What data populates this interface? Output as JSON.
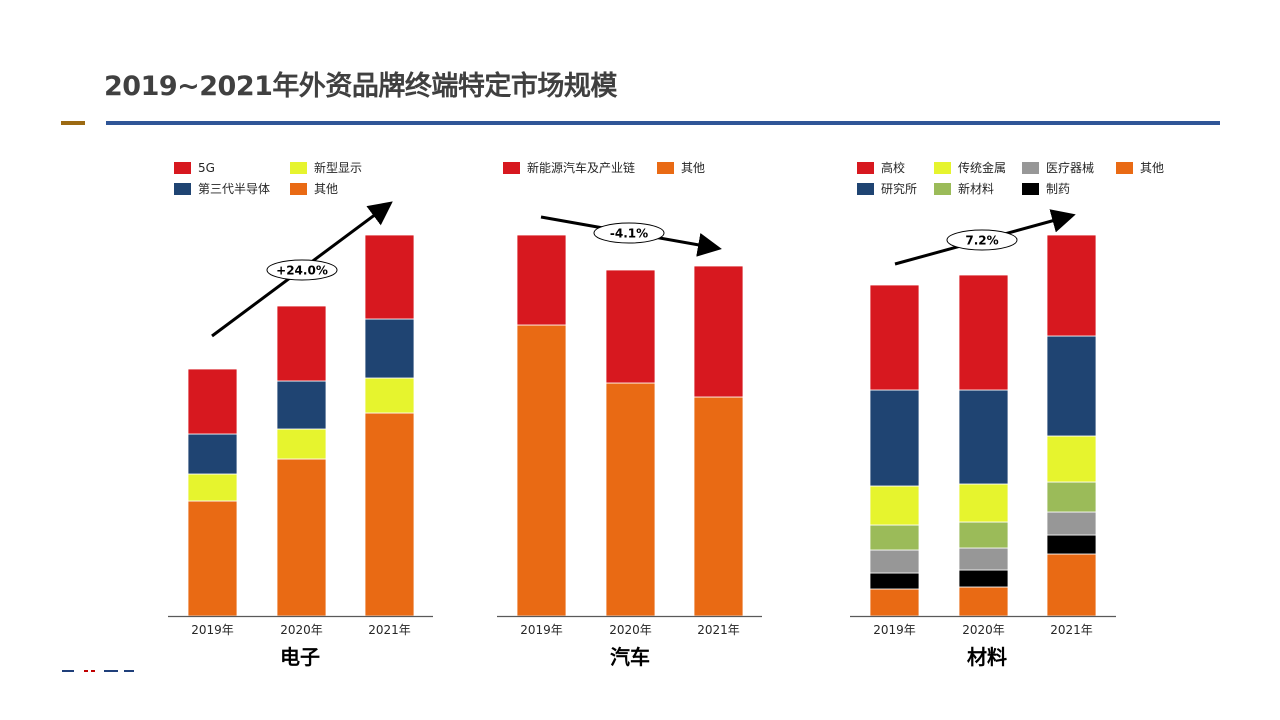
{
  "page": {
    "title": "2019~2021年外资品牌终端特定市场规模"
  },
  "colors": {
    "title_rule_accent": "#9c6a13",
    "title_rule_main": "#2f5597"
  },
  "chart_data": [
    {
      "type": "bar",
      "stacked": true,
      "title": "电子",
      "categories": [
        "2019年",
        "2020年",
        "2021年"
      ],
      "legend_placement": "top",
      "legend_order": [
        "5G",
        "新型显示",
        "第三代半导体",
        "其他"
      ],
      "series": [
        {
          "name": "其他",
          "color": "#e96a14",
          "values": [
            115,
            157,
            203
          ]
        },
        {
          "name": "新型显示",
          "color": "#e6f42e",
          "values": [
            27,
            30,
            35
          ]
        },
        {
          "name": "第三代半导体",
          "color": "#1f4472",
          "values": [
            40,
            48,
            59
          ]
        },
        {
          "name": "5G",
          "color": "#d7181f",
          "values": [
            65,
            75,
            84
          ]
        }
      ],
      "annotation": {
        "text": "+24.0%",
        "direction": "up"
      },
      "ylim": [
        0,
        400
      ],
      "value_units": "relative (estimated, no axis shown)",
      "grid": false
    },
    {
      "type": "bar",
      "stacked": true,
      "title": "汽车",
      "categories": [
        "2019年",
        "2020年",
        "2021年"
      ],
      "legend_placement": "top",
      "legend_order": [
        "新能源汽车及产业链",
        "其他"
      ],
      "series": [
        {
          "name": "其他",
          "color": "#e96a14",
          "values": [
            291,
            233,
            219
          ]
        },
        {
          "name": "新能源汽车及产业链",
          "color": "#d7181f",
          "values": [
            90,
            113,
            131
          ]
        }
      ],
      "annotation": {
        "text": "-4.1%",
        "direction": "down"
      },
      "ylim": [
        0,
        400
      ],
      "value_units": "relative (estimated, no axis shown)",
      "grid": false
    },
    {
      "type": "bar",
      "stacked": true,
      "title": "材料",
      "categories": [
        "2019年",
        "2020年",
        "2021年"
      ],
      "legend_placement": "top",
      "legend_order": [
        "高校",
        "传统金属",
        "医疗器械",
        "其他",
        "研究所",
        "新材料",
        "制药"
      ],
      "series": [
        {
          "name": "其他",
          "color": "#e96a14",
          "values": [
            27,
            29,
            62
          ]
        },
        {
          "name": "制药",
          "color": "#000000",
          "values": [
            16,
            17,
            19
          ]
        },
        {
          "name": "医疗器械",
          "color": "#979797",
          "values": [
            23,
            22,
            23
          ]
        },
        {
          "name": "新材料",
          "color": "#9bbb59",
          "values": [
            25,
            26,
            30
          ]
        },
        {
          "name": "传统金属",
          "color": "#e6f42e",
          "values": [
            39,
            38,
            46
          ]
        },
        {
          "name": "研究所",
          "color": "#1f4472",
          "values": [
            96,
            94,
            100
          ]
        },
        {
          "name": "高校",
          "color": "#d7181f",
          "values": [
            105,
            115,
            101
          ]
        }
      ],
      "annotation": {
        "text": "7.2%",
        "direction": "up"
      },
      "ylim": [
        0,
        400
      ],
      "value_units": "relative (estimated, no axis shown)",
      "grid": false
    }
  ]
}
